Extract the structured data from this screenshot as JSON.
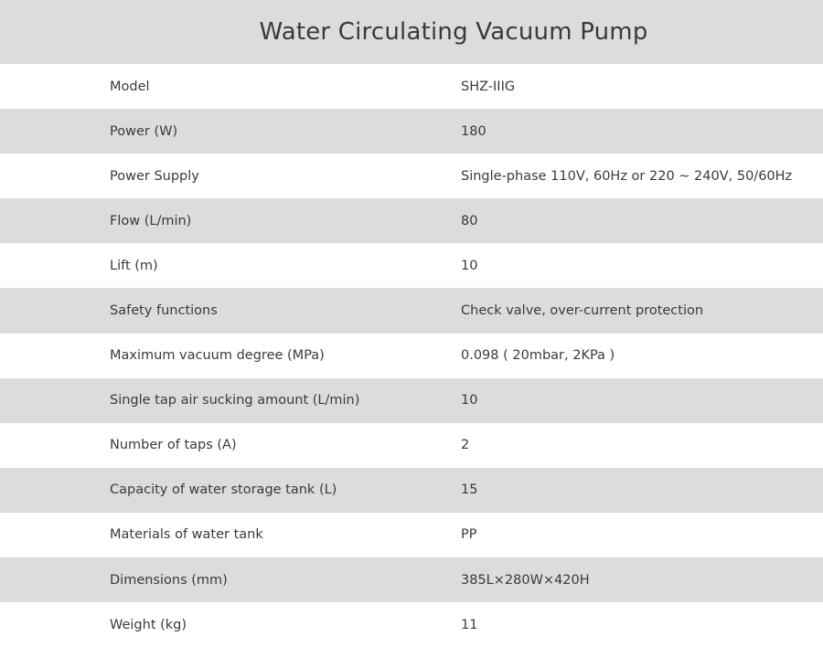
{
  "title": "Water Circulating Vacuum Pump",
  "rows": [
    {
      "label": "Model",
      "value": "SHZ-IIIG"
    },
    {
      "label": "Power (W)",
      "value": "180"
    },
    {
      "label": "Power Supply",
      "value": "Single-phase 110V, 60Hz or 220 ~ 240V, 50/60Hz"
    },
    {
      "label": "Flow (L/min)",
      "value": "80"
    },
    {
      "label": "Lift (m)",
      "value": "10"
    },
    {
      "label": "Safety functions",
      "value": "Check valve, over-current protection"
    },
    {
      "label": "Maximum vacuum degree (MPa)",
      "value": "0.098 ( 20mbar, 2KPa )"
    },
    {
      "label": "Single tap air sucking amount (L/min)",
      "value": "10"
    },
    {
      "label": "Number of taps (A)",
      "value": "2"
    },
    {
      "label": "Capacity of water storage tank (L)",
      "value": "15"
    },
    {
      "label": "Materials of water tank",
      "value": "PP"
    },
    {
      "label": "Dimensions (mm)",
      "value": "385L×280W×420H"
    },
    {
      "label": "Weight (kg)",
      "value": "11"
    }
  ],
  "colors": {
    "shaded_row": "#dcdcdc",
    "plain_row": "#ffffff",
    "text": "#3a3a3a"
  }
}
